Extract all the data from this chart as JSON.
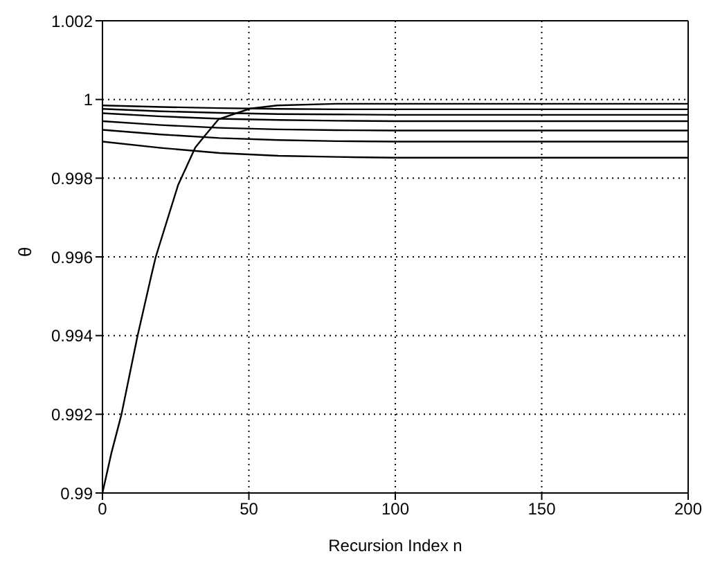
{
  "chart_data": {
    "type": "line",
    "xlabel": "Recursion Index n",
    "ylabel": "θ",
    "xlim": [
      0,
      200
    ],
    "xticks": [
      0,
      50,
      100,
      150,
      200
    ],
    "ylim": [
      0.99,
      1.002
    ],
    "yticks": [
      0.99,
      0.992,
      0.994,
      0.996,
      0.998,
      1,
      1.002
    ],
    "grid": true,
    "legend": false,
    "marker": "none",
    "line_style": "solid",
    "series": [
      {
        "color": "#000000",
        "x": [
          0,
          3,
          6.5,
          12,
          16.6,
          18.2,
          25.8,
          31.7,
          35.4,
          39.7,
          50.5,
          59.7,
          80,
          100,
          150,
          200
        ],
        "values": [
          0.99,
          0.991,
          0.992,
          0.994,
          0.9955,
          0.996,
          0.99782,
          0.99878,
          0.99912,
          0.9995,
          0.99977,
          0.99985,
          0.99989,
          0.99989,
          0.99989,
          0.99989
        ]
      },
      {
        "color": "#000000",
        "x": [
          0,
          20,
          40,
          60,
          80,
          100,
          150,
          200
        ],
        "values": [
          0.99985,
          0.99981,
          0.99978,
          0.99976,
          0.99975,
          0.99975,
          0.99975,
          0.99975
        ]
      },
      {
        "color": "#000000",
        "x": [
          0,
          20,
          40,
          60,
          80,
          100,
          150,
          200
        ],
        "values": [
          0.99976,
          0.9997,
          0.99966,
          0.99963,
          0.99962,
          0.99961,
          0.99961,
          0.99961
        ]
      },
      {
        "color": "#000000",
        "x": [
          0,
          20,
          40,
          60,
          80,
          100,
          150,
          200
        ],
        "values": [
          0.99965,
          0.99957,
          0.99951,
          0.99948,
          0.99946,
          0.99945,
          0.99945,
          0.99945
        ]
      },
      {
        "color": "#000000",
        "x": [
          0,
          20,
          40,
          60,
          80,
          100,
          150,
          200
        ],
        "values": [
          0.99945,
          0.99935,
          0.99928,
          0.99924,
          0.99922,
          0.99921,
          0.99921,
          0.99921
        ]
      },
      {
        "color": "#000000",
        "x": [
          0,
          20,
          40,
          60,
          80,
          100,
          150,
          200
        ],
        "values": [
          0.99923,
          0.99911,
          0.99902,
          0.99897,
          0.99894,
          0.99893,
          0.99893,
          0.99893
        ]
      },
      {
        "color": "#000000",
        "x": [
          0,
          20,
          40,
          60,
          80,
          100,
          150,
          200
        ],
        "values": [
          0.99893,
          0.99877,
          0.99864,
          0.99857,
          0.99854,
          0.99852,
          0.99852,
          0.99852
        ]
      }
    ]
  }
}
